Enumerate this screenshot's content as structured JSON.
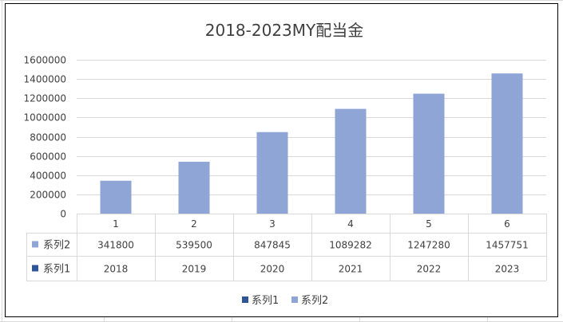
{
  "chart_data": {
    "type": "bar",
    "title": "2018-2023MY配当金",
    "categories": [
      "1",
      "2",
      "3",
      "4",
      "5",
      "6"
    ],
    "ylim": [
      0,
      1600000
    ],
    "yticks": [
      0,
      200000,
      400000,
      600000,
      800000,
      1000000,
      1200000,
      1400000,
      1600000
    ],
    "grid": true,
    "legend_position": "bottom",
    "series": [
      {
        "name": "系列2",
        "values": [
          341800,
          539500,
          847845,
          1089282,
          1247280,
          1457751
        ],
        "color": "#8FA5D6",
        "plotted": true
      },
      {
        "name": "系列1",
        "values": [
          2018,
          2019,
          2020,
          2021,
          2022,
          2023
        ],
        "color": "#2F5597",
        "plotted": false
      }
    ],
    "data_table": {
      "rows": [
        {
          "series_name": "系列2",
          "cells": [
            "341800",
            "539500",
            "847845",
            "1089282",
            "1247280",
            "1457751"
          ]
        },
        {
          "series_name": "系列1",
          "cells": [
            "2018",
            "2019",
            "2020",
            "2021",
            "2022",
            "2023"
          ]
        }
      ]
    },
    "legend": [
      "系列1",
      "系列2"
    ]
  }
}
